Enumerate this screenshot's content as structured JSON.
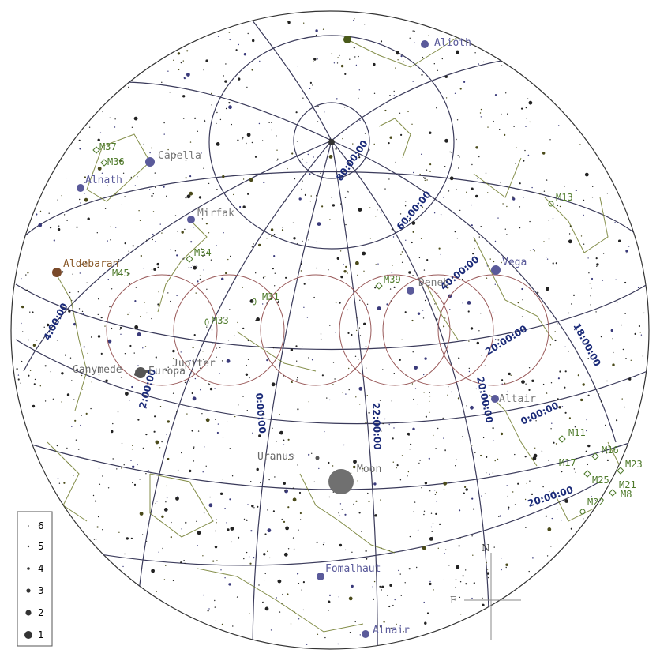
{
  "colors": {
    "background": "#ffffff",
    "horizon": "#333333",
    "grid": "#3a3a5a",
    "grid_label": "#1a2a78",
    "constellation": "#6e7a2a",
    "star_named": "#5a5a9a",
    "star_field": "#222222",
    "dso": "#4e7a2a",
    "fov_circle": "#9a5a5a",
    "planet": "#555555",
    "moon": "#707070"
  },
  "grid_labels": {
    "dec_80": "80:00:00",
    "dec_60": "60:00:00",
    "dec_40": "40:00:00",
    "dec_20": "20:00:00",
    "dec_0": "0:00:00",
    "dec_minus20": "20:00:00",
    "ra_4h": "4:00:00",
    "ra_2h": "2:00:00",
    "ra_0h": "0:00:00",
    "ra_22h": "22:00:00",
    "ra_20h": "20:00:00",
    "ra_18h": "18:00:00"
  },
  "star_labels": {
    "alioth": "Alioth",
    "capella": "Capella",
    "alnath": "Alnath",
    "mirfak": "Mirfak",
    "aldebaran": "Aldebaran",
    "vega": "Vega",
    "deneb": "Deneb",
    "altair": "Altair",
    "fomalhaut": "Fomalhaut",
    "alnair": "Alnair"
  },
  "planet_labels": {
    "jupiter": "Jupiter",
    "ganymede": "Ganymede",
    "europa": "Europa",
    "uranus": "Uranus",
    "moon": "Moon"
  },
  "dso_labels": {
    "m37": "M37",
    "m36": "M36",
    "m34": "M34",
    "m45": "M45",
    "m33": "M33",
    "m31": "M31",
    "m39": "M39",
    "m13": "M13",
    "m11": "M11",
    "m16": "M16",
    "m17": "M17",
    "m23": "M23",
    "m25": "M25",
    "m21": "M21",
    "m8": "M8",
    "m22": "M22"
  },
  "compass": {
    "north": "N",
    "east": "E"
  },
  "legend": {
    "magnitudes": [
      "6",
      "5",
      "4",
      "3",
      "2",
      "1"
    ]
  }
}
